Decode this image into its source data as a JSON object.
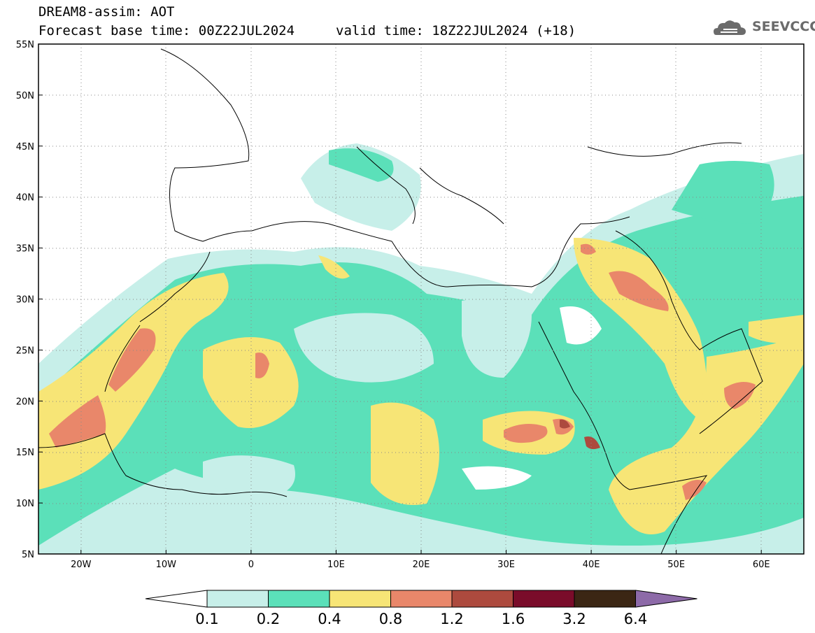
{
  "header": {
    "model_title": "DREAM8-assim: AOT",
    "forecast_base": "Forecast base time: 00Z22JUL2024",
    "valid_time": "valid time: 18Z22JUL2024 (+18)"
  },
  "logo": {
    "text": "SEEVCCC",
    "icon": "cloud-icon"
  },
  "map": {
    "lat_labels": [
      "55N",
      "50N",
      "45N",
      "40N",
      "35N",
      "30N",
      "25N",
      "20N",
      "15N",
      "10N",
      "5N"
    ],
    "lon_labels": [
      "20W",
      "10W",
      "0",
      "10E",
      "20E",
      "30E",
      "40E",
      "50E",
      "60E"
    ],
    "lat_range": [
      5,
      55
    ],
    "lon_range": [
      -25,
      65
    ],
    "grid": true
  },
  "colorbar": {
    "levels": [
      "0.1",
      "0.2",
      "0.4",
      "0.8",
      "1.2",
      "1.6",
      "3.2",
      "6.4"
    ],
    "colors": [
      "#c7efe9",
      "#5be0b9",
      "#f7e576",
      "#e9876a",
      "#ad4a3e",
      "#7a0c2a",
      "#3b2614",
      "#8d6aa8"
    ]
  }
}
